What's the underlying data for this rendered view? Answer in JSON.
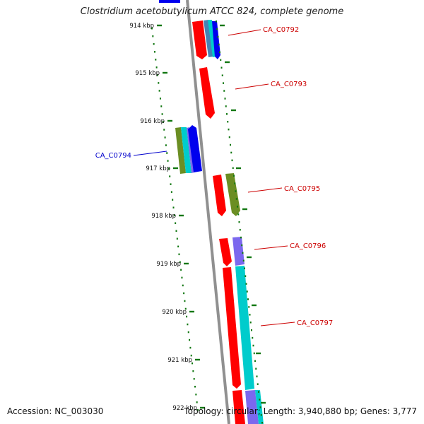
{
  "title": "Clostridium acetobutylicum ATCC 824, complete genome",
  "footer": {
    "accession": "Accession: NC_003030",
    "summary": "Topology: circular; Length: 3,940,880 bp; Genes: 3,777"
  },
  "colors": {
    "forward_label": "#cc0000",
    "reverse_label": "#0000cc",
    "tick": "#117711",
    "backbone": "#888888",
    "red": "#ff0000",
    "blue": "#0000ee",
    "cyan": "#00cccc",
    "olive": "#6b8e23",
    "purple": "#7b68ee",
    "steel": "#4682b4"
  },
  "ticks": [
    "914 kbp",
    "915 kbp",
    "916 kbp",
    "917 kbp",
    "918 kbp",
    "919 kbp",
    "920 kbp",
    "921 kbp",
    "922 kbp"
  ],
  "labels": [
    {
      "text": "CA_C0792",
      "strand": "forward"
    },
    {
      "text": "CA_C0793",
      "strand": "forward"
    },
    {
      "text": "CA_C0794",
      "strand": "reverse"
    },
    {
      "text": "CA_C0795",
      "strand": "forward"
    },
    {
      "text": "CA_C0796",
      "strand": "forward"
    },
    {
      "text": "CA_C0797",
      "strand": "forward"
    }
  ]
}
